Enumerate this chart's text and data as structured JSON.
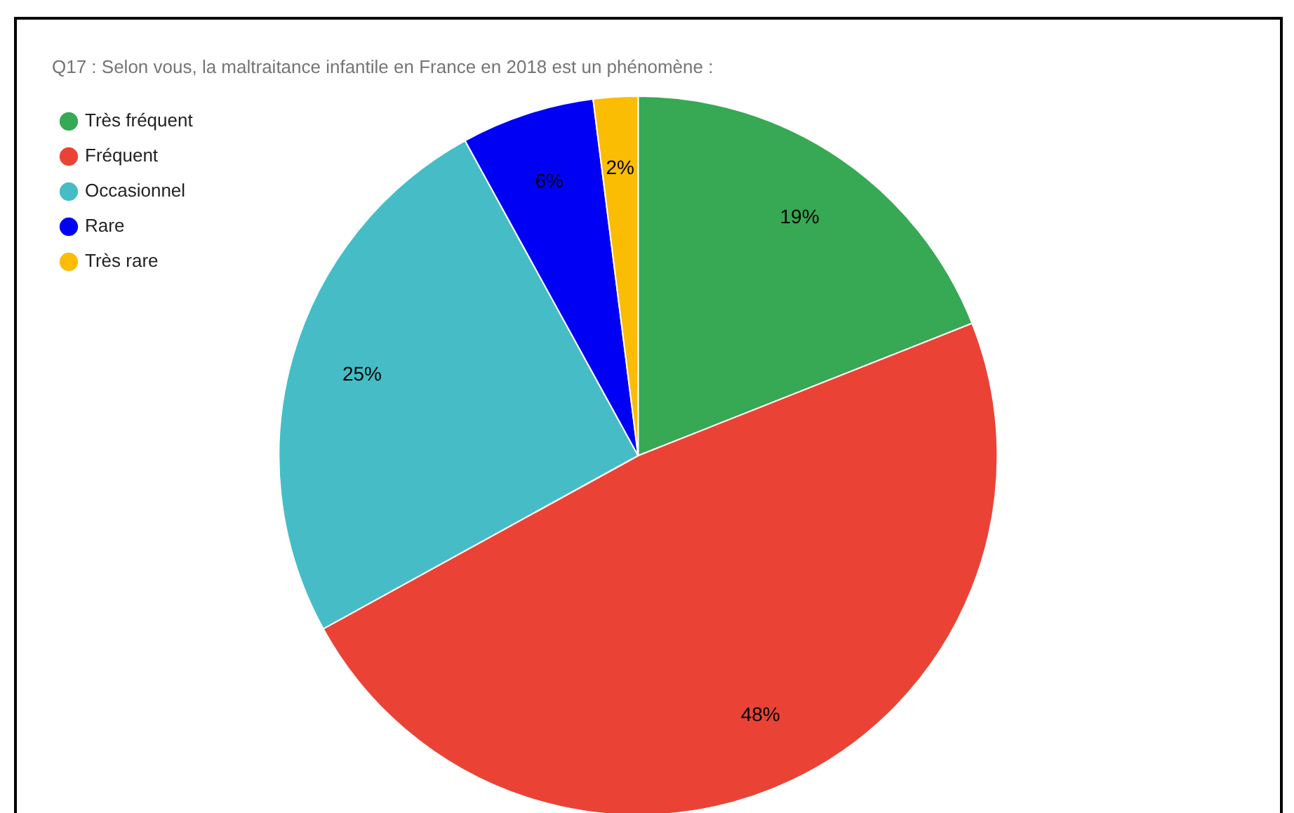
{
  "chart_data": {
    "type": "pie",
    "title": "Q17 : Selon vous, la maltraitance infantile en France en 2018 est un phénomène :",
    "categories": [
      "Très fréquent",
      "Fréquent",
      "Occasionnel",
      "Rare",
      "Très rare"
    ],
    "values": [
      19,
      48,
      25,
      6,
      2
    ],
    "colors": [
      "#37a854",
      "#ea4335",
      "#46bdc6",
      "#0000f5",
      "#fbbc04"
    ],
    "legend": "top left",
    "value_labels": [
      "19%",
      "48%",
      "25%",
      "6%",
      "2%"
    ]
  }
}
